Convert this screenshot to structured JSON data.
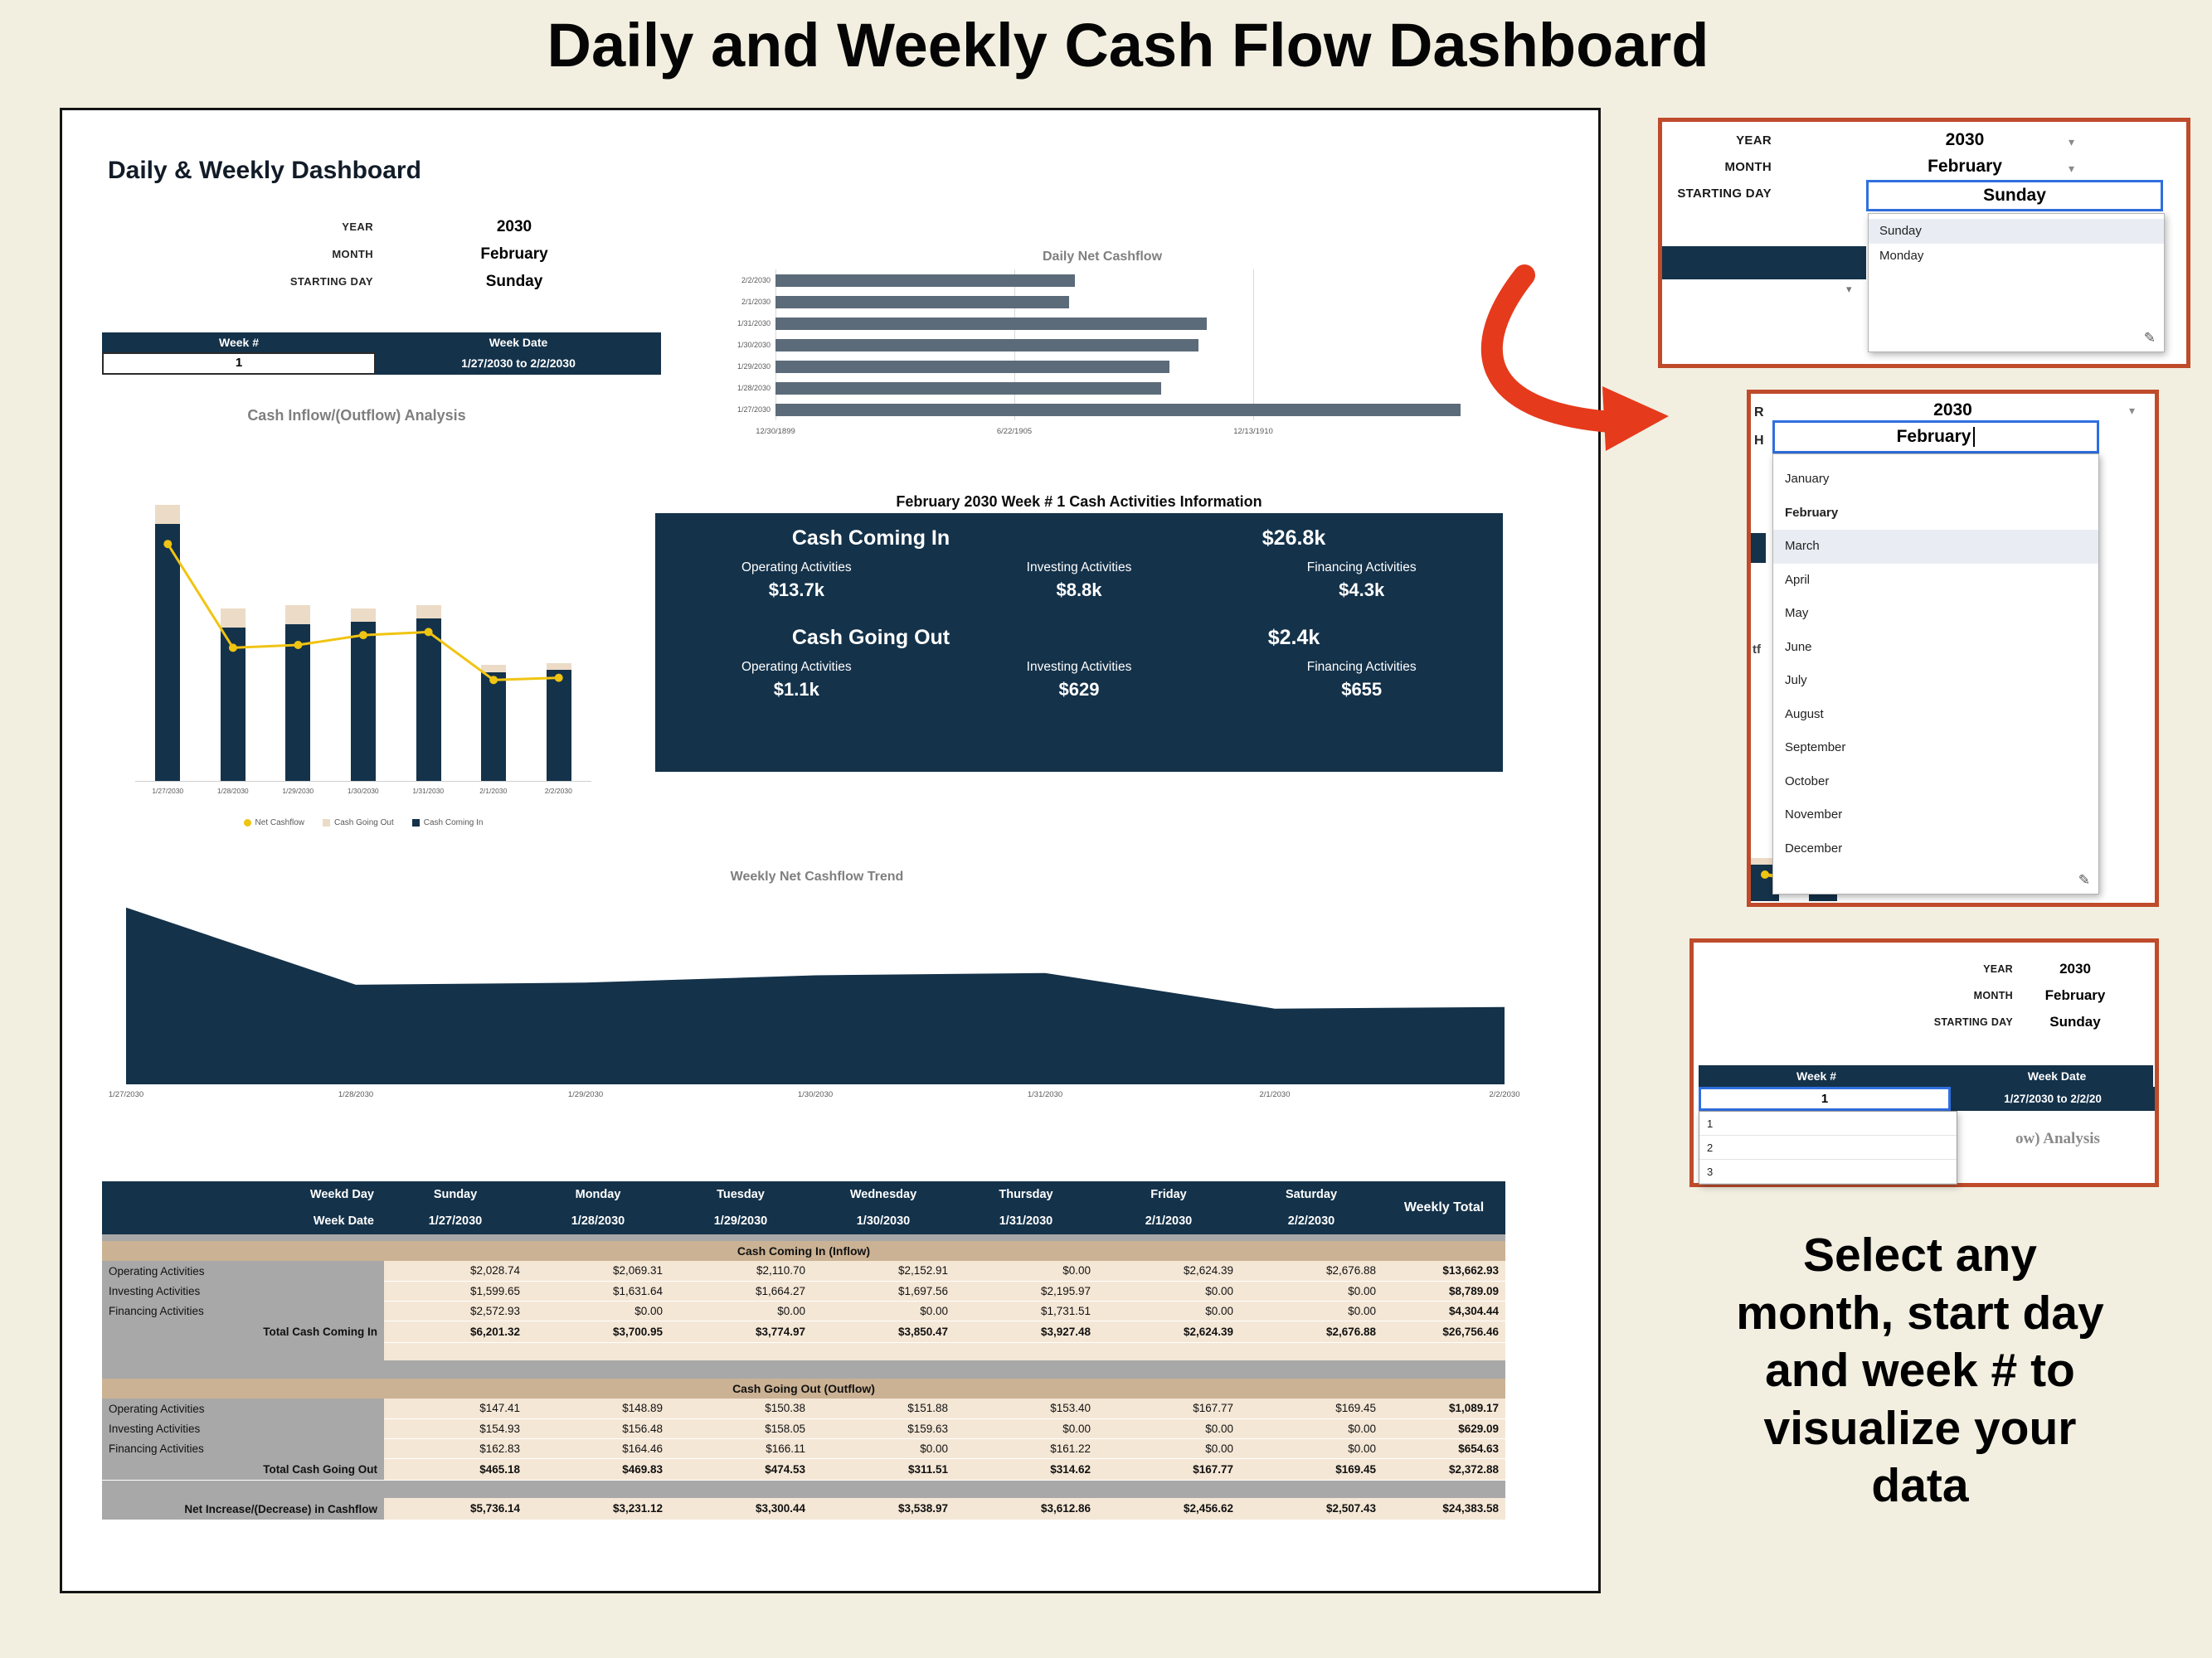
{
  "page": {
    "title": "Daily and Weekly  Cash Flow Dashboard",
    "callout_lines": [
      "Select any",
      "month, start day",
      "and week # to",
      "visualize your",
      "data"
    ]
  },
  "icons": {
    "caret_down": "▾",
    "pencil": "✎"
  },
  "colors": {
    "canvas_bg": "#f2efe1",
    "navy": "#14324a",
    "beige_cap": "#ecdbc6",
    "band_tan": "#cbb294",
    "cell_beige": "#f5e7d6",
    "grey_label": "#a8a8a8",
    "hbar_grey": "#5c6b79",
    "line_yellow": "#f0c412",
    "accent_orange": "#bf4b2b",
    "arrow_red": "#e63a1c",
    "highlight_blue": "#2f6fe0"
  },
  "dashboard": {
    "heading": "Daily & Weekly Dashboard",
    "controls": {
      "year_label": "YEAR",
      "year_value": "2030",
      "month_label": "MONTH",
      "month_value": "February",
      "starting_day_label": "STARTING DAY",
      "starting_day_value": "Sunday"
    },
    "week_selector": {
      "week_num_header": "Week #",
      "week_num": "1",
      "week_date_header": "Week Date",
      "week_date": "1/27/2030 to 2/2/2030"
    },
    "info_panel": {
      "title": "February 2030 Week # 1 Cash Activities Information",
      "in_label": "Cash Coming In",
      "in_total": "$26.8k",
      "out_label": "Cash  Going Out",
      "out_total": "$2.4k",
      "in_items": [
        {
          "label": "Operating Activities",
          "value": "$13.7k"
        },
        {
          "label": "Investing Activities",
          "value": "$8.8k"
        },
        {
          "label": "Financing Activities",
          "value": "$4.3k"
        }
      ],
      "out_items": [
        {
          "label": "Operating Activities",
          "value": "$1.1k"
        },
        {
          "label": "Investing Activities",
          "value": "$629"
        },
        {
          "label": "Financing Activities",
          "value": "$655"
        }
      ]
    }
  },
  "chart_data": [
    {
      "id": "inflow_outflow",
      "type": "bar",
      "title": "Cash Inflow/(Outflow) Analysis",
      "categories": [
        "1/27/2030",
        "1/28/2030",
        "1/29/2030",
        "1/30/2030",
        "1/31/2030",
        "2/1/2030",
        "2/2/2030"
      ],
      "series": [
        {
          "name": "Cash Coming In",
          "type": "bar",
          "values": [
            6201.32,
            3700.95,
            3774.97,
            3850.47,
            3927.48,
            2624.39,
            2676.88
          ]
        },
        {
          "name": "Cash Going Out",
          "type": "bar",
          "values": [
            465.18,
            469.83,
            474.53,
            311.51,
            314.62,
            167.77,
            169.45
          ]
        },
        {
          "name": "Net Cashflow",
          "type": "line",
          "values": [
            5736.14,
            3231.12,
            3300.44,
            3538.97,
            3612.86,
            2456.62,
            2507.43
          ]
        }
      ],
      "legend": [
        {
          "label": "Net Cashflow",
          "swatch": "dot",
          "color": "#f0c412"
        },
        {
          "label": "Cash Going Out",
          "swatch": "square",
          "color": "#ecdbc6"
        },
        {
          "label": "Cash Coming In",
          "swatch": "square",
          "color": "#14324a"
        }
      ],
      "ylim": [
        0,
        7000
      ],
      "stacked": true
    },
    {
      "id": "daily_net",
      "type": "bar",
      "orientation": "horizontal",
      "title": "Daily Net Cashflow",
      "categories": [
        "2/2/2030",
        "2/1/2030",
        "1/31/2030",
        "1/30/2030",
        "1/29/2030",
        "1/28/2030",
        "1/27/2030"
      ],
      "values": [
        2507.43,
        2456.62,
        3612.86,
        3538.97,
        3300.44,
        3231.12,
        5736.14
      ],
      "x_ticks": [
        "12/30/1899",
        "6/22/1905",
        "12/13/1910"
      ],
      "x_tick_values": [
        0,
        2000,
        4000
      ],
      "xlim": [
        0,
        6000
      ]
    },
    {
      "id": "weekly_trend",
      "type": "area",
      "title": "Weekly Net Cashflow Trend",
      "categories": [
        "1/27/2030",
        "1/28/2030",
        "1/29/2030",
        "1/30/2030",
        "1/31/2030",
        "2/1/2030",
        "2/2/2030"
      ],
      "values": [
        5736.14,
        3231.12,
        3300.44,
        3538.97,
        3612.86,
        2456.62,
        2507.43
      ],
      "ylim": [
        0,
        6000
      ]
    }
  ],
  "table": {
    "header_row1": [
      "Weekd Day",
      "Sunday",
      "Monday",
      "Tuesday",
      "Wednesday",
      "Thursday",
      "Friday",
      "Saturday"
    ],
    "header_row2": [
      "Week Date",
      "1/27/2030",
      "1/28/2030",
      "1/29/2030",
      "1/30/2030",
      "1/31/2030",
      "2/1/2030",
      "2/2/2030"
    ],
    "weekly_total_header": "Weekly Total",
    "sections": [
      {
        "band": "Cash Coming In (Inflow)",
        "rows": [
          {
            "label": "Operating Activities",
            "values": [
              "$2,028.74",
              "$2,069.31",
              "$2,110.70",
              "$2,152.91",
              "$0.00",
              "$2,624.39",
              "$2,676.88"
            ],
            "total": "$13,662.93",
            "bold": false
          },
          {
            "label": "Investing Activities",
            "values": [
              "$1,599.65",
              "$1,631.64",
              "$1,664.27",
              "$1,697.56",
              "$2,195.97",
              "$0.00",
              "$0.00"
            ],
            "total": "$8,789.09",
            "bold": false
          },
          {
            "label": "Financing Activities",
            "values": [
              "$2,572.93",
              "$0.00",
              "$0.00",
              "$0.00",
              "$1,731.51",
              "$0.00",
              "$0.00"
            ],
            "total": "$4,304.44",
            "bold": false
          },
          {
            "label": "Total Cash Coming In",
            "values": [
              "$6,201.32",
              "$3,700.95",
              "$3,774.97",
              "$3,850.47",
              "$3,927.48",
              "$2,624.39",
              "$2,676.88"
            ],
            "total": "$26,756.46",
            "bold": true
          }
        ]
      },
      {
        "band": "Cash Going Out (Outflow)",
        "rows": [
          {
            "label": "Operating Activities",
            "values": [
              "$147.41",
              "$148.89",
              "$150.38",
              "$151.88",
              "$153.40",
              "$167.77",
              "$169.45"
            ],
            "total": "$1,089.17",
            "bold": false
          },
          {
            "label": "Investing Activities",
            "values": [
              "$154.93",
              "$156.48",
              "$158.05",
              "$159.63",
              "$0.00",
              "$0.00",
              "$0.00"
            ],
            "total": "$629.09",
            "bold": false
          },
          {
            "label": "Financing Activities",
            "values": [
              "$162.83",
              "$164.46",
              "$166.11",
              "$0.00",
              "$161.22",
              "$0.00",
              "$0.00"
            ],
            "total": "$654.63",
            "bold": false
          },
          {
            "label": "Total Cash Going Out",
            "values": [
              "$465.18",
              "$469.83",
              "$474.53",
              "$311.51",
              "$314.62",
              "$167.77",
              "$169.45"
            ],
            "total": "$2,372.88",
            "bold": true
          }
        ]
      }
    ],
    "net_row": {
      "label": "Net Increase/(Decrease) in Cashflow",
      "values": [
        "$5,736.14",
        "$3,231.12",
        "$3,300.44",
        "$3,538.97",
        "$3,612.86",
        "$2,456.62",
        "$2,507.43"
      ],
      "total": "$24,383.58"
    }
  },
  "panels": {
    "starting_day_panel": {
      "year_label": "YEAR",
      "year_value": "2030",
      "month_label": "MONTH",
      "month_value": "February",
      "starting_day_label": "STARTING DAY",
      "selected": "Sunday",
      "options": [
        "Sunday",
        "Monday"
      ]
    },
    "month_panel": {
      "year_value": "2030",
      "edit_value": "February",
      "current": "February",
      "highlighted": "March",
      "options": [
        "January",
        "February",
        "March",
        "April",
        "May",
        "June",
        "July",
        "August",
        "September",
        "October",
        "November",
        "December"
      ],
      "cropped_left": [
        "R",
        "H",
        "tf"
      ]
    },
    "week_panel": {
      "year_label": "YEAR",
      "year_value": "2030",
      "month_label": "MONTH",
      "month_value": "February",
      "starting_day_label": "STARTING DAY",
      "starting_day_value": "Sunday",
      "week_num_header": "Week #",
      "week_date_header": "Week Date",
      "selected_week": "1",
      "week_date": "1/27/2030 to 2/2/20",
      "options": [
        "1",
        "2",
        "3"
      ],
      "cropped_text": "ow) Analysis"
    }
  }
}
